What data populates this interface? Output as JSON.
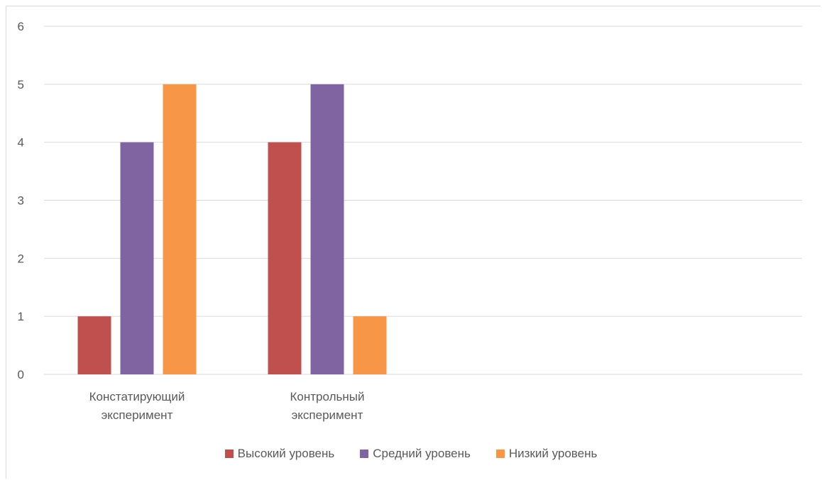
{
  "chart_data": {
    "type": "bar",
    "categories": [
      [
        "Констатирующий",
        "эксперимент"
      ],
      [
        "Контрольный",
        "эксперимент"
      ]
    ],
    "series": [
      {
        "name": "Высокий уровень",
        "values": [
          1,
          4
        ],
        "color": "#c0504d"
      },
      {
        "name": "Средний уровень",
        "values": [
          4,
          5
        ],
        "color": "#8064a2"
      },
      {
        "name": "Низкий уровень",
        "values": [
          5,
          1
        ],
        "color": "#f79646"
      }
    ],
    "ylim": [
      0,
      6
    ],
    "yticks": [
      "0",
      "1",
      "2",
      "3",
      "4",
      "5",
      "6"
    ],
    "grid": true,
    "legend_position": "bottom"
  }
}
